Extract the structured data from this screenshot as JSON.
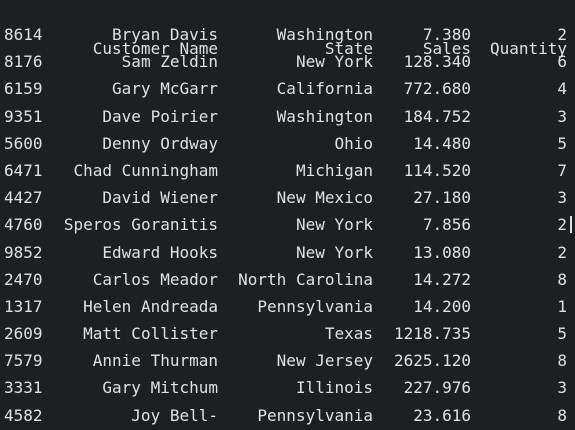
{
  "table": {
    "columns": {
      "name": "Customer Name",
      "state": "State",
      "sales": "Sales",
      "quantity": "Quantity"
    },
    "rows": [
      {
        "index": "8614",
        "name": "Bryan Davis",
        "state": "Washington",
        "sales": "7.380",
        "quantity": "2"
      },
      {
        "index": "8176",
        "name": "Sam Zeldin",
        "state": "New York",
        "sales": "128.340",
        "quantity": "6"
      },
      {
        "index": "6159",
        "name": "Gary McGarr",
        "state": "California",
        "sales": "772.680",
        "quantity": "4"
      },
      {
        "index": "9351",
        "name": "Dave Poirier",
        "state": "Washington",
        "sales": "184.752",
        "quantity": "3"
      },
      {
        "index": "5600",
        "name": "Denny Ordway",
        "state": "Ohio",
        "sales": "14.480",
        "quantity": "5"
      },
      {
        "index": "6471",
        "name": "Chad Cunningham",
        "state": "Michigan",
        "sales": "114.520",
        "quantity": "7"
      },
      {
        "index": "4427",
        "name": "David Wiener",
        "state": "New Mexico",
        "sales": "27.180",
        "quantity": "3"
      },
      {
        "index": "4760",
        "name": "Speros Goranitis",
        "state": "New York",
        "sales": "7.856",
        "quantity": "2"
      },
      {
        "index": "9852",
        "name": "Edward Hooks",
        "state": "New York",
        "sales": "13.080",
        "quantity": "2"
      },
      {
        "index": "2470",
        "name": "Carlos Meador",
        "state": "North Carolina",
        "sales": "14.272",
        "quantity": "8"
      },
      {
        "index": "1317",
        "name": "Helen Andreada",
        "state": "Pennsylvania",
        "sales": "14.200",
        "quantity": "1"
      },
      {
        "index": "2609",
        "name": "Matt Collister",
        "state": "Texas",
        "sales": "1218.735",
        "quantity": "5"
      },
      {
        "index": "7579",
        "name": "Annie Thurman",
        "state": "New Jersey",
        "sales": "2625.120",
        "quantity": "8"
      },
      {
        "index": "3331",
        "name": "Gary Mitchum",
        "state": "Illinois",
        "sales": "227.976",
        "quantity": "3"
      },
      {
        "index": "4582",
        "name": "Joy Bell-",
        "state": "Pennsylvania",
        "sales": "23.616",
        "quantity": "8"
      }
    ]
  }
}
